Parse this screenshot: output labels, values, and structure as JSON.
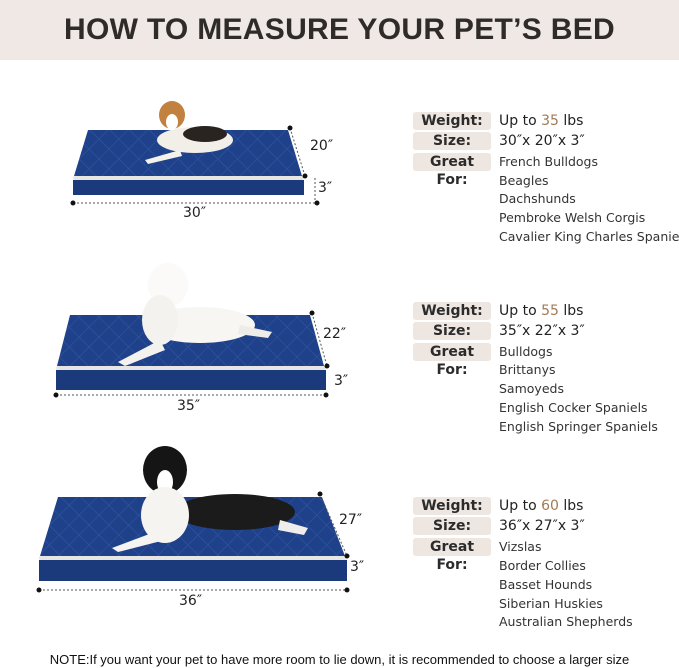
{
  "title": "HOW TO MEASURE YOUR PET’S BED",
  "labels": {
    "weight": "Weight:",
    "size": "Size:",
    "great_for": "Great For:"
  },
  "beds": [
    {
      "weight_prefix": "Up to ",
      "weight_value": "35",
      "weight_unit": " lbs",
      "size": "30″x 20″x 3″",
      "length": "30″",
      "depth": "20″",
      "height": "3″",
      "breeds": [
        "French Bulldogs",
        "Beagles",
        "Dachshunds",
        "Pembroke Welsh Corgis",
        "Cavalier King Charles Spaniels"
      ]
    },
    {
      "weight_prefix": "Up to ",
      "weight_value": "55",
      "weight_unit": " lbs",
      "size": "35″x 22″x 3″",
      "length": "35″",
      "depth": "22″",
      "height": "3″",
      "breeds": [
        "Bulldogs",
        "Brittanys",
        "Samoyeds",
        "English Cocker Spaniels",
        "English Springer Spaniels"
      ]
    },
    {
      "weight_prefix": "Up to ",
      "weight_value": "60",
      "weight_unit": " lbs",
      "size": "36″x 27″x 3″",
      "length": "36″",
      "depth": "27″",
      "height": "3″",
      "breeds": [
        "Vizslas",
        "Border Collies",
        "Basset Hounds",
        "Siberian Huskies",
        "Australian Shepherds"
      ]
    }
  ],
  "note": "NOTE:If you want your pet to have more room to lie down, it is recommended to choose a larger size",
  "colors": {
    "header_bg": "#efe8e4",
    "bed_blue": "#1d3f86",
    "accent": "#a27a52"
  }
}
